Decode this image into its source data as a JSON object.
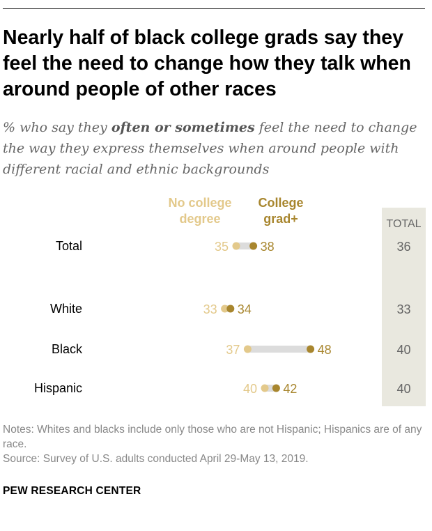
{
  "title": "Nearly half of black college grads say they feel the need to change how they talk when around people of other races",
  "subtitle": {
    "before": "% who say they ",
    "emphasis": "often or sometimes",
    "after": " feel the need to change the way they express themselves when around people with different racial and ethnic backgrounds"
  },
  "chart_data": {
    "type": "dot",
    "series": [
      {
        "name": "No college degree",
        "name_lines": [
          "No college",
          "degree"
        ],
        "color": "#e3c98b",
        "values": [
          35,
          33,
          37,
          40
        ]
      },
      {
        "name": "College grad+",
        "name_lines": [
          "College",
          "grad+"
        ],
        "color": "#a8862e",
        "values": [
          38,
          34,
          48,
          42
        ]
      }
    ],
    "categories": [
      "Total",
      "White",
      "Black",
      "Hispanic"
    ],
    "total_column": {
      "header": "TOTAL",
      "values": [
        36,
        33,
        40,
        40
      ],
      "background": "#e9e8df"
    },
    "connector_color": "#dcdcdc"
  },
  "notes": "Notes: Whites and blacks include only those who are not Hispanic; Hispanics are of any race.",
  "source": "Source: Survey of U.S. adults conducted April 29-May 13, 2019.",
  "brand": "PEW RESEARCH CENTER"
}
